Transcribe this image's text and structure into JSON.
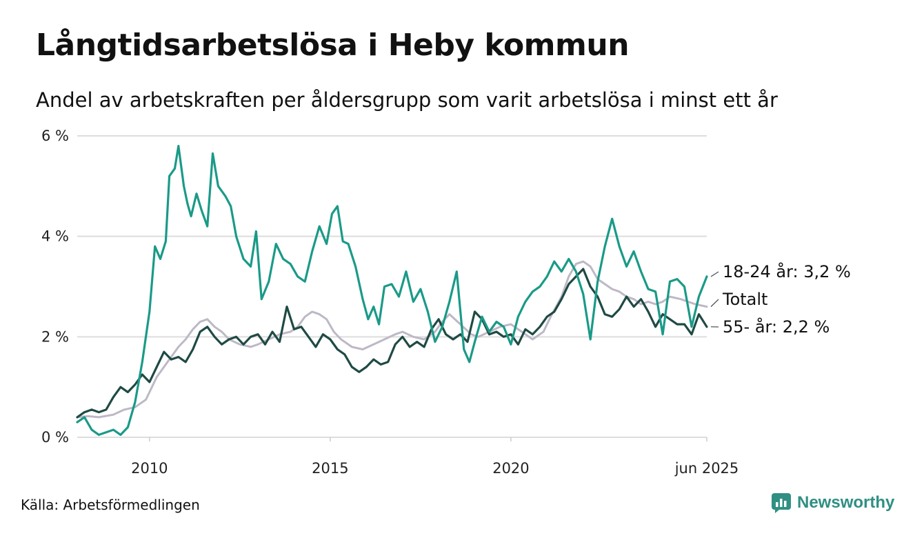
{
  "header": {
    "title": "Långtidsarbetslösa i Heby kommun",
    "subtitle": "Andel av arbetskraften per åldersgrupp som varit arbetslösa i minst ett år"
  },
  "footer": {
    "source": "Källa: Arbetsförmedlingen",
    "brand": "Newsworthy"
  },
  "colors": {
    "youth": "#1a9a88",
    "total": "#bdb8c6",
    "senior": "#1f4a44",
    "grid": "#dddddd",
    "brand": "#2f8f83"
  },
  "chart_data": {
    "type": "line",
    "title": "Långtidsarbetslösa i Heby kommun",
    "subtitle": "Andel av arbetskraften per åldersgrupp som varit arbetslösa i minst ett år",
    "ylim": [
      0,
      6
    ],
    "xlim": [
      2008.0,
      2025.42
    ],
    "yticks": [
      {
        "value": 0,
        "label": "0 %"
      },
      {
        "value": 2,
        "label": "2 %"
      },
      {
        "value": 4,
        "label": "4 %"
      },
      {
        "value": 6,
        "label": "6 %"
      }
    ],
    "xticks": [
      {
        "value": 2010,
        "label": "2010"
      },
      {
        "value": 2015,
        "label": "2015"
      },
      {
        "value": 2020,
        "label": "2020"
      },
      {
        "value": 2025.42,
        "label": "jun 2025"
      }
    ],
    "grid": true,
    "legend": "end-labels",
    "series": [
      {
        "name": "Totalt",
        "end_label": "Totalt",
        "key": "total",
        "points": [
          [
            2008.0,
            0.4
          ],
          [
            2008.3,
            0.42
          ],
          [
            2008.6,
            0.4
          ],
          [
            2009.0,
            0.45
          ],
          [
            2009.3,
            0.55
          ],
          [
            2009.6,
            0.6
          ],
          [
            2009.9,
            0.75
          ],
          [
            2010.2,
            1.2
          ],
          [
            2010.5,
            1.5
          ],
          [
            2010.8,
            1.8
          ],
          [
            2011.0,
            1.95
          ],
          [
            2011.2,
            2.15
          ],
          [
            2011.4,
            2.3
          ],
          [
            2011.6,
            2.35
          ],
          [
            2011.8,
            2.2
          ],
          [
            2012.0,
            2.1
          ],
          [
            2012.2,
            1.95
          ],
          [
            2012.5,
            1.85
          ],
          [
            2012.8,
            1.8
          ],
          [
            2013.0,
            1.85
          ],
          [
            2013.3,
            1.95
          ],
          [
            2013.6,
            2.05
          ],
          [
            2013.9,
            2.1
          ],
          [
            2014.1,
            2.2
          ],
          [
            2014.3,
            2.4
          ],
          [
            2014.5,
            2.5
          ],
          [
            2014.7,
            2.45
          ],
          [
            2014.9,
            2.35
          ],
          [
            2015.1,
            2.1
          ],
          [
            2015.3,
            1.95
          ],
          [
            2015.6,
            1.8
          ],
          [
            2015.9,
            1.75
          ],
          [
            2016.2,
            1.85
          ],
          [
            2016.5,
            1.95
          ],
          [
            2016.8,
            2.05
          ],
          [
            2017.0,
            2.1
          ],
          [
            2017.3,
            2.0
          ],
          [
            2017.6,
            1.95
          ],
          [
            2017.9,
            2.1
          ],
          [
            2018.1,
            2.3
          ],
          [
            2018.3,
            2.45
          ],
          [
            2018.6,
            2.25
          ],
          [
            2018.9,
            2.05
          ],
          [
            2019.1,
            2.0
          ],
          [
            2019.4,
            2.1
          ],
          [
            2019.7,
            2.2
          ],
          [
            2020.0,
            2.25
          ],
          [
            2020.3,
            2.1
          ],
          [
            2020.6,
            1.95
          ],
          [
            2020.9,
            2.1
          ],
          [
            2021.1,
            2.4
          ],
          [
            2021.4,
            2.8
          ],
          [
            2021.6,
            3.2
          ],
          [
            2021.8,
            3.45
          ],
          [
            2022.0,
            3.5
          ],
          [
            2022.2,
            3.4
          ],
          [
            2022.4,
            3.15
          ],
          [
            2022.6,
            3.05
          ],
          [
            2022.8,
            2.95
          ],
          [
            2023.0,
            2.9
          ],
          [
            2023.2,
            2.8
          ],
          [
            2023.4,
            2.75
          ],
          [
            2023.6,
            2.65
          ],
          [
            2023.8,
            2.7
          ],
          [
            2024.0,
            2.65
          ],
          [
            2024.2,
            2.7
          ],
          [
            2024.4,
            2.8
          ],
          [
            2024.7,
            2.75
          ],
          [
            2024.9,
            2.7
          ],
          [
            2025.1,
            2.65
          ],
          [
            2025.42,
            2.6
          ]
        ]
      },
      {
        "name": "55- år",
        "end_label": "55- år: 2,2 %",
        "key": "senior",
        "points": [
          [
            2008.0,
            0.4
          ],
          [
            2008.2,
            0.5
          ],
          [
            2008.4,
            0.55
          ],
          [
            2008.6,
            0.5
          ],
          [
            2008.8,
            0.55
          ],
          [
            2009.0,
            0.8
          ],
          [
            2009.2,
            1.0
          ],
          [
            2009.4,
            0.9
          ],
          [
            2009.6,
            1.05
          ],
          [
            2009.8,
            1.25
          ],
          [
            2010.0,
            1.1
          ],
          [
            2010.2,
            1.4
          ],
          [
            2010.4,
            1.7
          ],
          [
            2010.6,
            1.55
          ],
          [
            2010.8,
            1.6
          ],
          [
            2011.0,
            1.5
          ],
          [
            2011.2,
            1.75
          ],
          [
            2011.4,
            2.1
          ],
          [
            2011.6,
            2.2
          ],
          [
            2011.8,
            2.0
          ],
          [
            2012.0,
            1.85
          ],
          [
            2012.2,
            1.95
          ],
          [
            2012.4,
            2.0
          ],
          [
            2012.6,
            1.85
          ],
          [
            2012.8,
            2.0
          ],
          [
            2013.0,
            2.05
          ],
          [
            2013.2,
            1.85
          ],
          [
            2013.4,
            2.1
          ],
          [
            2013.6,
            1.9
          ],
          [
            2013.8,
            2.6
          ],
          [
            2014.0,
            2.15
          ],
          [
            2014.2,
            2.2
          ],
          [
            2014.4,
            2.0
          ],
          [
            2014.6,
            1.8
          ],
          [
            2014.8,
            2.05
          ],
          [
            2015.0,
            1.95
          ],
          [
            2015.2,
            1.75
          ],
          [
            2015.4,
            1.65
          ],
          [
            2015.6,
            1.4
          ],
          [
            2015.8,
            1.3
          ],
          [
            2016.0,
            1.4
          ],
          [
            2016.2,
            1.55
          ],
          [
            2016.4,
            1.45
          ],
          [
            2016.6,
            1.5
          ],
          [
            2016.8,
            1.85
          ],
          [
            2017.0,
            2.0
          ],
          [
            2017.2,
            1.8
          ],
          [
            2017.4,
            1.9
          ],
          [
            2017.6,
            1.8
          ],
          [
            2017.8,
            2.15
          ],
          [
            2018.0,
            2.35
          ],
          [
            2018.2,
            2.05
          ],
          [
            2018.4,
            1.95
          ],
          [
            2018.6,
            2.05
          ],
          [
            2018.8,
            1.9
          ],
          [
            2019.0,
            2.5
          ],
          [
            2019.2,
            2.35
          ],
          [
            2019.4,
            2.05
          ],
          [
            2019.6,
            2.1
          ],
          [
            2019.8,
            2.0
          ],
          [
            2020.0,
            2.05
          ],
          [
            2020.2,
            1.85
          ],
          [
            2020.4,
            2.15
          ],
          [
            2020.6,
            2.05
          ],
          [
            2020.8,
            2.2
          ],
          [
            2021.0,
            2.4
          ],
          [
            2021.2,
            2.5
          ],
          [
            2021.4,
            2.75
          ],
          [
            2021.6,
            3.05
          ],
          [
            2021.8,
            3.2
          ],
          [
            2022.0,
            3.35
          ],
          [
            2022.2,
            3.0
          ],
          [
            2022.4,
            2.8
          ],
          [
            2022.6,
            2.45
          ],
          [
            2022.8,
            2.4
          ],
          [
            2023.0,
            2.55
          ],
          [
            2023.2,
            2.8
          ],
          [
            2023.4,
            2.6
          ],
          [
            2023.6,
            2.75
          ],
          [
            2023.8,
            2.5
          ],
          [
            2024.0,
            2.2
          ],
          [
            2024.2,
            2.45
          ],
          [
            2024.4,
            2.35
          ],
          [
            2024.6,
            2.25
          ],
          [
            2024.8,
            2.25
          ],
          [
            2025.0,
            2.05
          ],
          [
            2025.2,
            2.45
          ],
          [
            2025.42,
            2.2
          ]
        ]
      },
      {
        "name": "18-24 år",
        "end_label": "18-24 år: 3,2 %",
        "key": "youth",
        "points": [
          [
            2008.0,
            0.3
          ],
          [
            2008.2,
            0.4
          ],
          [
            2008.4,
            0.15
          ],
          [
            2008.6,
            0.05
          ],
          [
            2008.8,
            0.1
          ],
          [
            2009.0,
            0.15
          ],
          [
            2009.2,
            0.05
          ],
          [
            2009.4,
            0.2
          ],
          [
            2009.6,
            0.7
          ],
          [
            2009.8,
            1.5
          ],
          [
            2010.0,
            2.5
          ],
          [
            2010.15,
            3.8
          ],
          [
            2010.3,
            3.55
          ],
          [
            2010.45,
            3.9
          ],
          [
            2010.55,
            5.2
          ],
          [
            2010.7,
            5.35
          ],
          [
            2010.8,
            5.8
          ],
          [
            2010.95,
            5.0
          ],
          [
            2011.05,
            4.65
          ],
          [
            2011.15,
            4.4
          ],
          [
            2011.3,
            4.85
          ],
          [
            2011.45,
            4.5
          ],
          [
            2011.6,
            4.2
          ],
          [
            2011.75,
            5.65
          ],
          [
            2011.9,
            5.0
          ],
          [
            2012.1,
            4.8
          ],
          [
            2012.25,
            4.6
          ],
          [
            2012.4,
            4.0
          ],
          [
            2012.6,
            3.55
          ],
          [
            2012.8,
            3.4
          ],
          [
            2012.95,
            4.1
          ],
          [
            2013.1,
            2.75
          ],
          [
            2013.3,
            3.1
          ],
          [
            2013.5,
            3.85
          ],
          [
            2013.7,
            3.55
          ],
          [
            2013.9,
            3.45
          ],
          [
            2014.1,
            3.2
          ],
          [
            2014.3,
            3.1
          ],
          [
            2014.5,
            3.7
          ],
          [
            2014.7,
            4.2
          ],
          [
            2014.9,
            3.85
          ],
          [
            2015.05,
            4.45
          ],
          [
            2015.2,
            4.6
          ],
          [
            2015.35,
            3.9
          ],
          [
            2015.5,
            3.85
          ],
          [
            2015.7,
            3.4
          ],
          [
            2015.9,
            2.75
          ],
          [
            2016.05,
            2.35
          ],
          [
            2016.2,
            2.6
          ],
          [
            2016.35,
            2.25
          ],
          [
            2016.5,
            3.0
          ],
          [
            2016.7,
            3.05
          ],
          [
            2016.9,
            2.8
          ],
          [
            2017.1,
            3.3
          ],
          [
            2017.3,
            2.7
          ],
          [
            2017.5,
            2.95
          ],
          [
            2017.7,
            2.5
          ],
          [
            2017.9,
            1.9
          ],
          [
            2018.1,
            2.2
          ],
          [
            2018.3,
            2.7
          ],
          [
            2018.5,
            3.3
          ],
          [
            2018.7,
            1.75
          ],
          [
            2018.85,
            1.5
          ],
          [
            2019.0,
            1.9
          ],
          [
            2019.2,
            2.4
          ],
          [
            2019.4,
            2.1
          ],
          [
            2019.6,
            2.3
          ],
          [
            2019.8,
            2.2
          ],
          [
            2020.0,
            1.85
          ],
          [
            2020.2,
            2.4
          ],
          [
            2020.4,
            2.7
          ],
          [
            2020.6,
            2.9
          ],
          [
            2020.8,
            3.0
          ],
          [
            2021.0,
            3.2
          ],
          [
            2021.2,
            3.5
          ],
          [
            2021.4,
            3.3
          ],
          [
            2021.6,
            3.55
          ],
          [
            2021.8,
            3.3
          ],
          [
            2022.0,
            2.85
          ],
          [
            2022.2,
            1.95
          ],
          [
            2022.4,
            3.1
          ],
          [
            2022.6,
            3.8
          ],
          [
            2022.8,
            4.35
          ],
          [
            2023.0,
            3.8
          ],
          [
            2023.2,
            3.4
          ],
          [
            2023.4,
            3.7
          ],
          [
            2023.6,
            3.3
          ],
          [
            2023.8,
            2.95
          ],
          [
            2024.0,
            2.9
          ],
          [
            2024.2,
            2.05
          ],
          [
            2024.4,
            3.1
          ],
          [
            2024.6,
            3.15
          ],
          [
            2024.8,
            3.0
          ],
          [
            2025.0,
            2.2
          ],
          [
            2025.2,
            2.8
          ],
          [
            2025.42,
            3.2
          ]
        ]
      }
    ]
  }
}
